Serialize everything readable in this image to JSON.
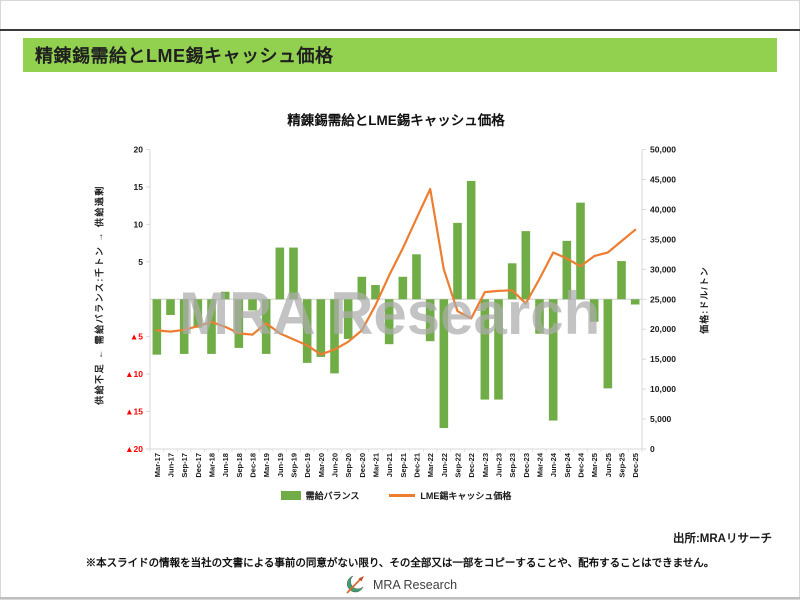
{
  "page": {
    "header_title": "精錬錫需給とLME錫キャッシュ価格",
    "watermark": "MRA Research",
    "source_note": "出所:MRAリサーチ",
    "disclaimer": "※本スライドの情報を当社の文書による事前の同意がない限り、その全部又は一部をコピーすることや、配布することはできません。",
    "logo_text": "MRA Research"
  },
  "chart_data": {
    "type": "bar",
    "subtype": "bar+line combo, dual axis",
    "title": "精錬錫需給とLME錫キャッシュ価格",
    "categories": [
      "Mar-17",
      "Jun-17",
      "Sep-17",
      "Dec-17",
      "Mar-18",
      "Jun-18",
      "Sep-18",
      "Dec-18",
      "Mar-19",
      "Jun-19",
      "Sep-19",
      "Dec-19",
      "Mar-20",
      "Jun-20",
      "Sep-20",
      "Dec-20",
      "Mar-21",
      "Jun-21",
      "Sep-21",
      "Dec-21",
      "Mar-22",
      "Jun-22",
      "Sep-22",
      "Dec-22",
      "Mar-23",
      "Jun-23",
      "Sep-23",
      "Dec-23",
      "Mar-24",
      "Jun-24",
      "Sep-24",
      "Dec-24",
      "Mar-25",
      "Jun-25",
      "Sep-25",
      "Dec-25"
    ],
    "series": [
      {
        "name": "需給バランス",
        "type": "bar",
        "axis": "left",
        "color": "#70AD47",
        "values": [
          -7.4,
          -2.1,
          -7.3,
          -3.8,
          -7.3,
          1.0,
          -6.5,
          -1.5,
          -7.3,
          6.9,
          6.9,
          -8.5,
          -7.7,
          -9.9,
          -5.3,
          3.0,
          1.9,
          -6.0,
          3.0,
          6.0,
          -5.6,
          -17.2,
          10.2,
          15.8,
          -13.4,
          -13.4,
          4.8,
          9.1,
          -4.6,
          -16.2,
          7.8,
          12.9,
          -3.0,
          -11.9,
          5.1,
          -0.7
        ]
      },
      {
        "name": "LME錫キャッシュ価格",
        "type": "line",
        "axis": "right",
        "color": "#ED7D31",
        "values": [
          19800,
          19600,
          19900,
          20500,
          21200,
          20400,
          19300,
          19100,
          21000,
          19300,
          18300,
          17300,
          15800,
          16600,
          17900,
          19800,
          24000,
          29000,
          33500,
          38500,
          43400,
          30000,
          23000,
          21800,
          26200,
          26400,
          26500,
          24300,
          28400,
          32800,
          31800,
          30500,
          32200,
          32800,
          34700,
          36600
        ]
      }
    ],
    "left_axis": {
      "title": "供給不足 ← 需給バランス:千トン → 供給過剰",
      "min": -20,
      "max": 20,
      "step": 5,
      "hide_zero_label": true,
      "negative_prefix": "▲",
      "negative_color": "#FF0000",
      "ticks": [
        {
          "value": 20,
          "label": "20"
        },
        {
          "value": 15,
          "label": "15"
        },
        {
          "value": 10,
          "label": "10"
        },
        {
          "value": 5,
          "label": "5"
        },
        {
          "value": -5,
          "label": "▲5"
        },
        {
          "value": -10,
          "label": "▲10"
        },
        {
          "value": -15,
          "label": "▲15"
        },
        {
          "value": -20,
          "label": "▲20"
        }
      ]
    },
    "right_axis": {
      "title": "価格:ドル/トン",
      "min": 0,
      "max": 50000,
      "step": 5000
    },
    "legend_position": "bottom",
    "grid": "zero-line-only"
  }
}
